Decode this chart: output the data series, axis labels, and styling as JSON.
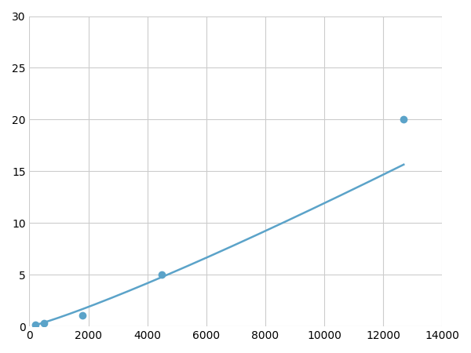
{
  "x_data": [
    200,
    500,
    1800,
    4500,
    12700
  ],
  "y_data": [
    0.2,
    0.3,
    1.1,
    5.0,
    20.0
  ],
  "line_color": "#5ba3c9",
  "marker_color": "#5ba3c9",
  "marker_size": 7,
  "xlim": [
    0,
    14000
  ],
  "ylim": [
    0,
    30
  ],
  "xticks": [
    0,
    2000,
    4000,
    6000,
    8000,
    10000,
    12000,
    14000
  ],
  "yticks": [
    0,
    5,
    10,
    15,
    20,
    25,
    30
  ],
  "grid_color": "#cccccc",
  "background_color": "#ffffff",
  "line_width": 1.8,
  "figsize": [
    6.0,
    4.5
  ],
  "dpi": 100
}
